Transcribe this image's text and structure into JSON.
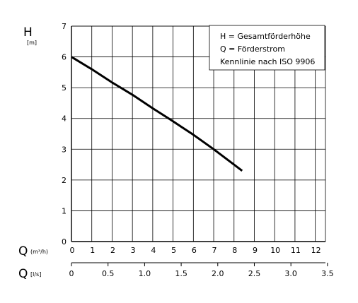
{
  "chart_data": {
    "type": "line",
    "ylabel": "H",
    "yunit": "[m]",
    "xlabel_primary": "Q",
    "xunit_primary": "(m³/h)",
    "xlabel_secondary": "Q",
    "xunit_secondary": "[l/s]",
    "ylim": [
      0,
      7
    ],
    "xlim": [
      0,
      12.5
    ],
    "y_ticks": [
      "0",
      "1",
      "2",
      "3",
      "4",
      "5",
      "6",
      "7"
    ],
    "x_ticks": [
      "0",
      "1",
      "2",
      "3",
      "4",
      "5",
      "6",
      "7",
      "8",
      "9",
      "10",
      "11",
      "12"
    ],
    "x2_ticks": [
      "0",
      "0.5",
      "1.0",
      "1.5",
      "2.0",
      "2.5",
      "3.0",
      "3.5"
    ],
    "grid": true,
    "legend_lines": [
      "H = Gesamtförderhöhe",
      "Q = Förderstrom",
      "Kennlinie nach ISO 9906"
    ],
    "legend_placement": "top-right",
    "series": [
      {
        "color": "#000000",
        "x": [
          0,
          1,
          2,
          3,
          4,
          4.9,
          6,
          7,
          8,
          8.4
        ],
        "y": [
          6.0,
          5.6,
          5.17,
          4.77,
          4.33,
          3.95,
          3.47,
          3.0,
          2.5,
          2.3
        ]
      }
    ]
  }
}
